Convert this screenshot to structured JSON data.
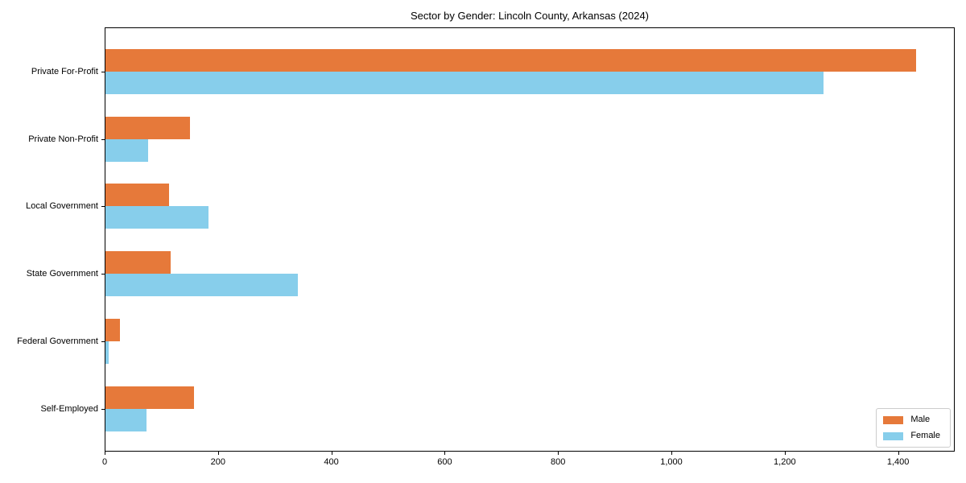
{
  "title": "Sector by Gender: Lincoln County, Arkansas (2024)",
  "chart_data": {
    "type": "bar",
    "orientation": "horizontal",
    "title": "Sector by Gender: Lincoln County, Arkansas (2024)",
    "categories": [
      "Private For-Profit",
      "Private Non-Profit",
      "Local Government",
      "State Government",
      "Federal Government",
      "Self-Employed"
    ],
    "series": [
      {
        "name": "Male",
        "color": "#e6793a",
        "values": [
          1430,
          149,
          112,
          115,
          25,
          156
        ]
      },
      {
        "name": "Female",
        "color": "#87ceeb",
        "values": [
          1267,
          75,
          182,
          340,
          6,
          72
        ]
      }
    ],
    "xlabel": "",
    "ylabel": "",
    "xlim": [
      0,
      1500
    ],
    "xticks": [
      0,
      200,
      400,
      600,
      800,
      1000,
      1200,
      1400
    ],
    "xtick_labels": [
      "0",
      "200",
      "400",
      "600",
      "800",
      "1,000",
      "1,200",
      "1,400"
    ],
    "grid": false,
    "legend": {
      "position": "lower-right",
      "entries": [
        "Male",
        "Female"
      ]
    },
    "plot_background": "#ffffff",
    "border_color": "#000000"
  }
}
